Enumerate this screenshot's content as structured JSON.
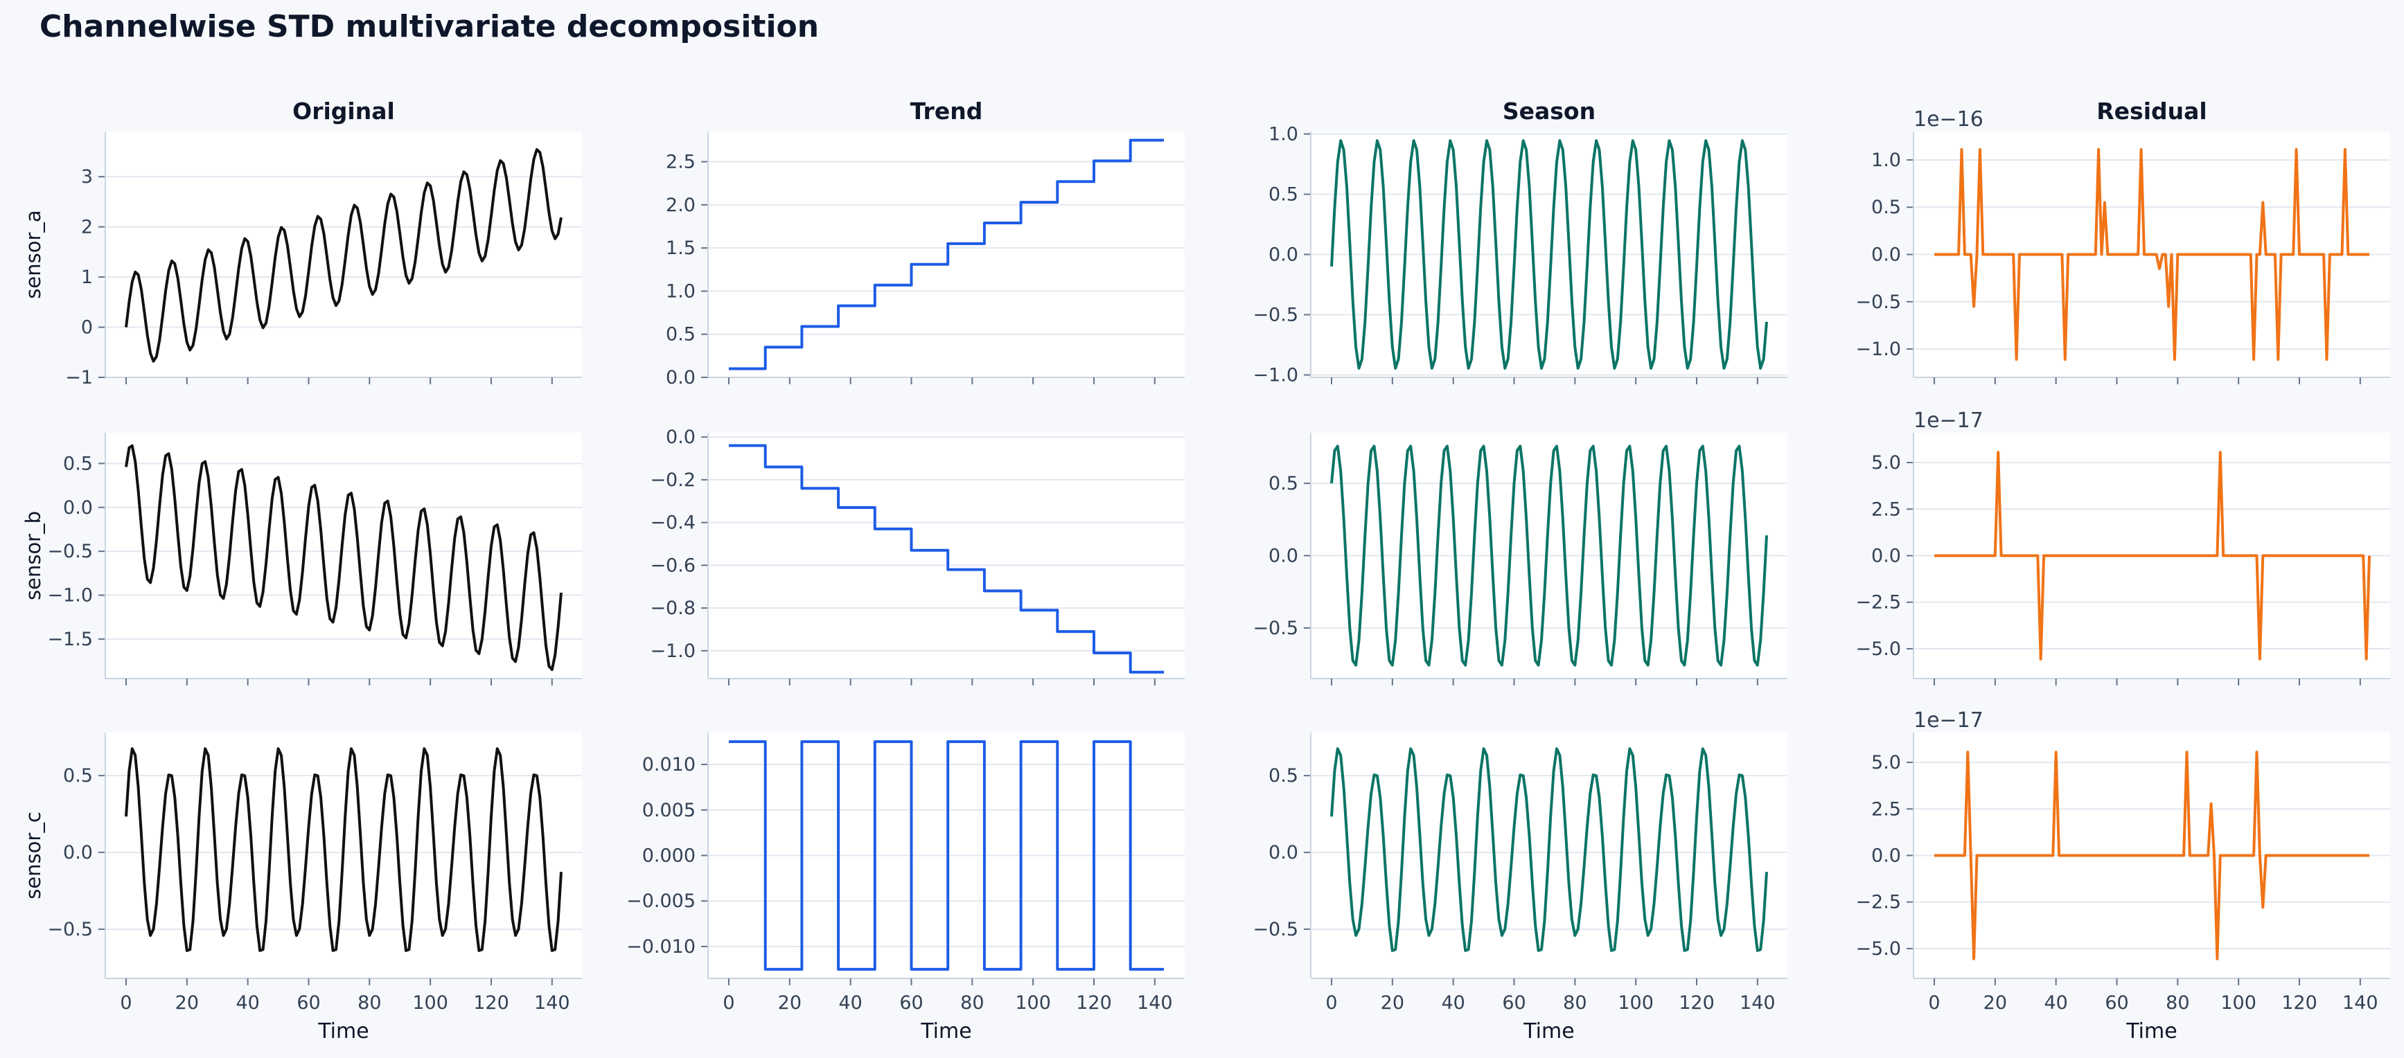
{
  "title": "Channelwise STD multivariate decomposition",
  "colors": {
    "background": "#f6f8fb",
    "panel": "#ffffff",
    "title": "#0f172a",
    "tick_text": "#334155",
    "grid": "#e2e8f0",
    "spine": "#cbd5e1",
    "original": "#111111",
    "trend": "#1d5ce6",
    "season": "#0b7566",
    "residual": "#f07316"
  },
  "chart_data": {
    "type": "line",
    "layout": "3x4 grid",
    "column_titles": [
      "Original",
      "Trend",
      "Season",
      "Residual"
    ],
    "row_labels": [
      "sensor_a",
      "sensor_b",
      "sensor_c"
    ],
    "xlabel": "Time",
    "x_range": [
      0,
      143
    ],
    "x_ticks": [
      0,
      20,
      40,
      60,
      80,
      100,
      120,
      140
    ],
    "series_length": 144,
    "season_period": 12,
    "trend_step": 12,
    "grid": "horizontal",
    "panels": [
      {
        "row": 0,
        "col": 0,
        "component": "original",
        "ylim": [
          -1.0,
          3.9
        ],
        "y_ticks": [
          -1,
          0,
          1,
          2,
          3
        ],
        "y_labels": [
          "−1",
          "0",
          "1",
          "2",
          "3"
        ]
      },
      {
        "row": 0,
        "col": 1,
        "component": "trend",
        "ylim": [
          0.0,
          2.85
        ],
        "y_ticks": [
          0,
          0.5,
          1,
          1.5,
          2,
          2.5
        ],
        "y_labels": [
          "0.0",
          "0.5",
          "1.0",
          "1.5",
          "2.0",
          "2.5"
        ],
        "levels": [
          0.1,
          0.35,
          0.59,
          0.83,
          1.07,
          1.31,
          1.55,
          1.79,
          2.03,
          2.27,
          2.51,
          2.75
        ]
      },
      {
        "row": 0,
        "col": 2,
        "component": "season",
        "ylim": [
          -1.02,
          1.02
        ],
        "y_ticks": [
          -1,
          -0.5,
          0,
          0.5,
          1
        ],
        "y_labels": [
          "−1.0",
          "−0.5",
          "0.0",
          "0.5",
          "1.0"
        ],
        "amplitude": 0.95,
        "offset": -0.1
      },
      {
        "row": 0,
        "col": 3,
        "component": "residual",
        "offset_text": "1e−16",
        "ylim": [
          -1.3,
          1.3
        ],
        "y_ticks": [
          -1,
          -0.5,
          0,
          0.5,
          1
        ],
        "y_labels": [
          "−1.0",
          "−0.5",
          "0.0",
          "0.5",
          "1.0"
        ],
        "spikes": [
          [
            9,
            1.11
          ],
          [
            13,
            -0.55
          ],
          [
            15,
            1.11
          ],
          [
            27,
            -1.11
          ],
          [
            43,
            -1.11
          ],
          [
            54,
            1.11
          ],
          [
            56,
            0.55
          ],
          [
            68,
            1.11
          ],
          [
            74,
            -0.15
          ],
          [
            77,
            -0.55
          ],
          [
            79,
            -1.11
          ],
          [
            105,
            -1.11
          ],
          [
            108,
            0.55
          ],
          [
            113,
            -1.11
          ],
          [
            119,
            1.11
          ],
          [
            129,
            -1.11
          ],
          [
            135,
            1.11
          ]
        ]
      },
      {
        "row": 1,
        "col": 0,
        "component": "original",
        "ylim": [
          -1.95,
          0.85
        ],
        "y_ticks": [
          -1.5,
          -1,
          -0.5,
          0,
          0.5
        ],
        "y_labels": [
          "−1.5",
          "−1.0",
          "−0.5",
          "0.0",
          "0.5"
        ]
      },
      {
        "row": 1,
        "col": 1,
        "component": "trend",
        "ylim": [
          -1.13,
          0.02
        ],
        "y_ticks": [
          -1,
          -0.8,
          -0.6,
          -0.4,
          -0.2,
          0
        ],
        "y_labels": [
          "−1.0",
          "−0.8",
          "−0.6",
          "−0.4",
          "−0.2",
          "0.0"
        ],
        "levels": [
          -0.04,
          -0.14,
          -0.24,
          -0.33,
          -0.43,
          -0.53,
          -0.62,
          -0.72,
          -0.81,
          -0.91,
          -1.01,
          -1.1
        ]
      },
      {
        "row": 1,
        "col": 2,
        "component": "season",
        "ylim": [
          -0.85,
          0.85
        ],
        "y_ticks": [
          -0.5,
          0,
          0.5
        ],
        "y_labels": [
          "−0.5",
          "0.0",
          "0.5"
        ],
        "amplitude": 0.77,
        "offset": 0.5
      },
      {
        "row": 1,
        "col": 3,
        "component": "residual",
        "offset_text": "1e−17",
        "ylim": [
          -6.6,
          6.6
        ],
        "y_ticks": [
          -5,
          -2.5,
          0,
          2.5,
          5
        ],
        "y_labels": [
          "−5.0",
          "−2.5",
          "0.0",
          "2.5",
          "5.0"
        ],
        "spikes": [
          [
            21,
            5.55
          ],
          [
            35,
            -5.55
          ],
          [
            94,
            5.55
          ],
          [
            107,
            -5.55
          ],
          [
            142,
            -5.55
          ]
        ]
      },
      {
        "row": 2,
        "col": 0,
        "component": "original",
        "ylim": [
          -0.82,
          0.78
        ],
        "y_ticks": [
          -0.5,
          0,
          0.5
        ],
        "y_labels": [
          "−0.5",
          "0.0",
          "0.5"
        ]
      },
      {
        "row": 2,
        "col": 1,
        "component": "trend",
        "ylim": [
          -0.0135,
          0.0135
        ],
        "y_ticks": [
          -0.01,
          -0.005,
          0,
          0.005,
          0.01
        ],
        "y_labels": [
          "−0.010",
          "−0.005",
          "0.000",
          "0.005",
          "0.010"
        ],
        "levels": [
          0.0125,
          -0.0125,
          0.0125,
          -0.0125,
          0.0125,
          -0.0125,
          0.0125,
          -0.0125,
          0.0125,
          -0.0125,
          0.0125,
          -0.0125
        ]
      },
      {
        "row": 2,
        "col": 2,
        "component": "season",
        "ylim": [
          -0.82,
          0.78
        ],
        "y_ticks": [
          -0.5,
          0,
          0.5
        ],
        "y_labels": [
          "−0.5",
          "0.0",
          "0.5"
        ],
        "amplitude": 0.6,
        "modulation": 0.1,
        "offset": 0.2
      },
      {
        "row": 2,
        "col": 3,
        "component": "residual",
        "offset_text": "1e−17",
        "ylim": [
          -6.6,
          6.6
        ],
        "y_ticks": [
          -5,
          -2.5,
          0,
          2.5,
          5
        ],
        "y_labels": [
          "−5.0",
          "−2.5",
          "0.0",
          "2.5",
          "5.0"
        ],
        "spikes": [
          [
            11,
            5.55
          ],
          [
            13,
            -5.55
          ],
          [
            40,
            5.55
          ],
          [
            83,
            5.55
          ],
          [
            91,
            2.78
          ],
          [
            93,
            -5.55
          ],
          [
            106,
            5.55
          ],
          [
            108,
            -2.78
          ]
        ]
      }
    ]
  }
}
